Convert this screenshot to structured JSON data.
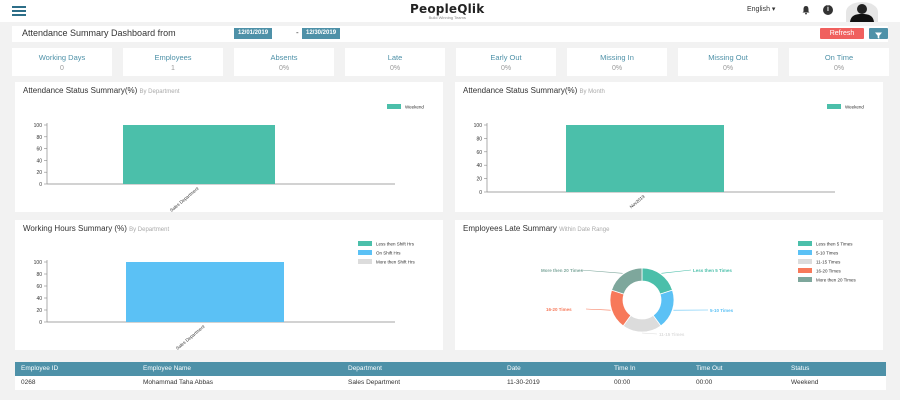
{
  "app": {
    "logo": "PeopleQlik",
    "tagline": "Build Winning Teams",
    "language": "English",
    "language_caret": "▾",
    "info_glyph": "i"
  },
  "header": {
    "title": "Attendance Summary Dashboard from",
    "date_from": "12/01/2019",
    "date_separator": "-",
    "date_to": "12/30/2019",
    "refresh_label": "Refresh"
  },
  "stats": [
    {
      "label": "Working Days",
      "value": "0"
    },
    {
      "label": "Employees",
      "value": "1"
    },
    {
      "label": "Absents",
      "value": "0%"
    },
    {
      "label": "Late",
      "value": "0%"
    },
    {
      "label": "Early Out",
      "value": "0%"
    },
    {
      "label": "Missing In",
      "value": "0%"
    },
    {
      "label": "Missing Out",
      "value": "0%"
    },
    {
      "label": "On Time",
      "value": "0%"
    }
  ],
  "panels": {
    "status_dept": {
      "title": "Attendance Status Summary(%)",
      "subtitle": "By Department"
    },
    "status_month": {
      "title": "Attendance Status Summary(%)",
      "subtitle": "By Month"
    },
    "hours_dept": {
      "title": "Working Hours Summary (%)",
      "subtitle": "By Department"
    },
    "late": {
      "title": "Employees Late Summary",
      "subtitle": "Within Date Range"
    }
  },
  "colors": {
    "accent": "#4e91a8",
    "teal": "#4bbfaa",
    "blue": "#5bc1f5",
    "grey": "#dcdcdc",
    "orange": "#f7795a",
    "slate": "#7ea79c",
    "refresh": "#f0605e"
  },
  "chart_data": [
    {
      "type": "bar",
      "title": "Attendance Status Summary(%) By Department",
      "categories": [
        "Sales Department"
      ],
      "series": [
        {
          "name": "Weekend",
          "values": [
            100
          ]
        }
      ],
      "yticks": [
        "0",
        "20",
        "40",
        "60",
        "80",
        "100"
      ],
      "ylim": [
        0,
        100
      ],
      "color": "#4bbfaa"
    },
    {
      "type": "bar",
      "title": "Attendance Status Summary(%) By Month",
      "categories": [
        "Nov2019"
      ],
      "series": [
        {
          "name": "Weekend",
          "values": [
            100
          ]
        }
      ],
      "yticks": [
        "0",
        "20",
        "40",
        "60",
        "80",
        "100"
      ],
      "ylim": [
        0,
        100
      ],
      "color": "#4bbfaa"
    },
    {
      "type": "bar",
      "title": "Working Hours Summary (%) By Department",
      "categories": [
        "Sales Department"
      ],
      "series": [
        {
          "name": "Less then Shift Hrs",
          "values": [
            0
          ],
          "color": "#4bbfaa"
        },
        {
          "name": "On Shift Hrs",
          "values": [
            100
          ],
          "color": "#5bc1f5"
        },
        {
          "name": "More then Shift Hrs",
          "values": [
            0
          ],
          "color": "#dcdcdc"
        }
      ],
      "yticks": [
        "0",
        "20",
        "40",
        "60",
        "80",
        "100"
      ],
      "ylim": [
        0,
        100
      ]
    },
    {
      "type": "pie",
      "title": "Employees Late Summary Within Date Range",
      "slices": [
        {
          "name": "Less then 5 Times",
          "value": 20,
          "color": "#4bbfaa"
        },
        {
          "name": "5-10 Times",
          "value": 20,
          "color": "#5bc1f5"
        },
        {
          "name": "11-15 Times",
          "value": 20,
          "color": "#dcdcdc"
        },
        {
          "name": "16-20 Times",
          "value": 20,
          "color": "#f7795a"
        },
        {
          "name": "More then 20 Times",
          "value": 20,
          "color": "#7ea79c"
        }
      ]
    }
  ],
  "table": {
    "headers": [
      "Employee ID",
      "Employee Name",
      "Department",
      "Date",
      "Time In",
      "Time Out",
      "Status"
    ],
    "rows": [
      [
        "0268",
        "Mohammad Taha Abbas",
        "Sales Department",
        "11-30-2019",
        "00:00",
        "00:00",
        "Weekend"
      ]
    ]
  }
}
